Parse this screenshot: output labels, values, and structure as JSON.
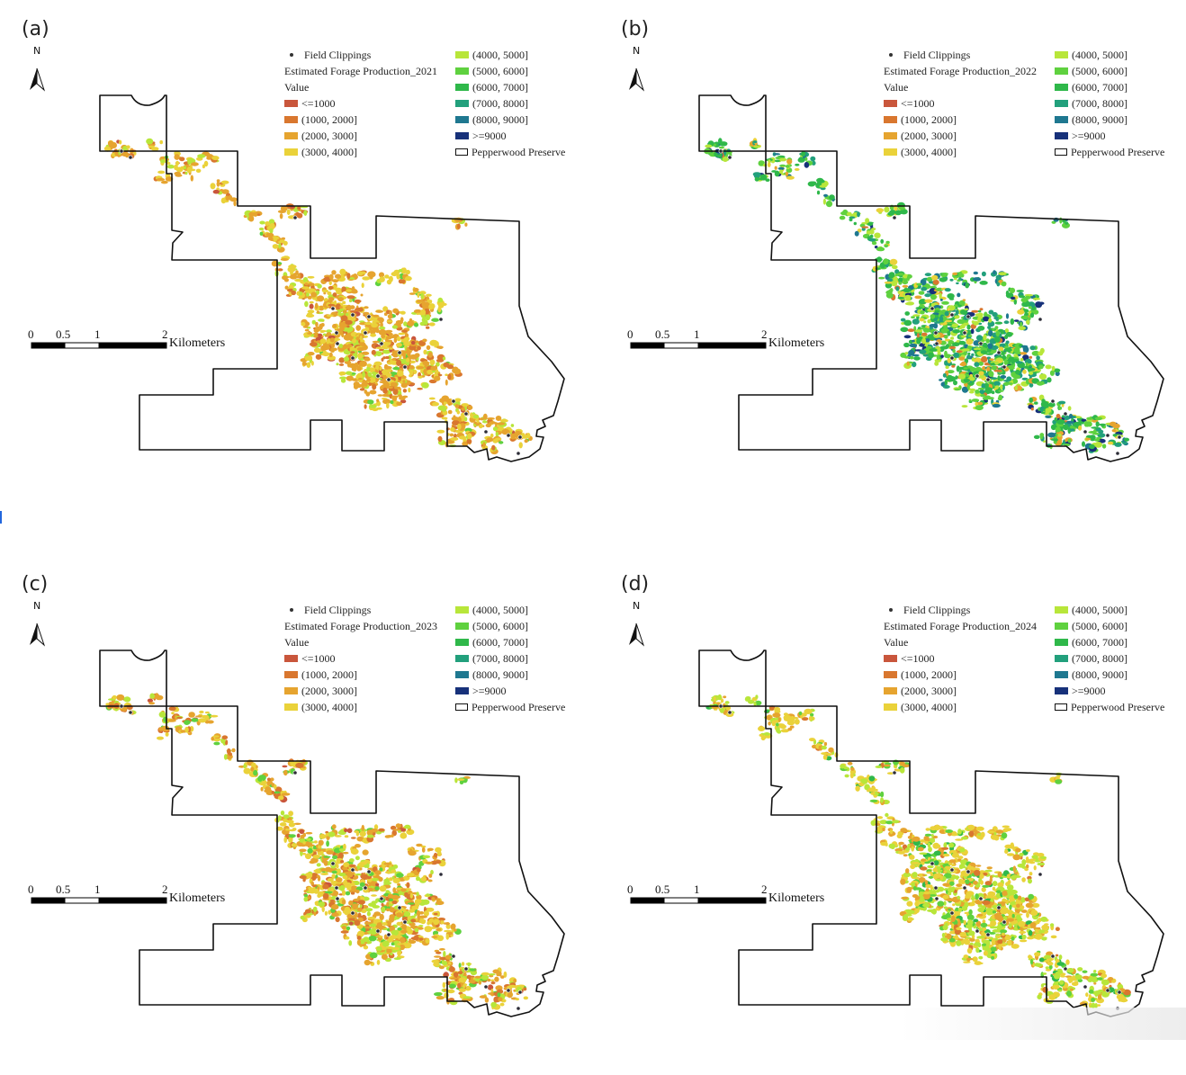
{
  "north_letter": "N",
  "scale": {
    "ticks": [
      "0",
      "0.5",
      "1",
      "2"
    ],
    "unit": "Kilometers"
  },
  "legend": {
    "points_label": "Field Clippings",
    "value_label": "Value",
    "classes": [
      {
        "label": "<=1000",
        "color": "#c9563c"
      },
      {
        "label": "(1000, 2000]",
        "color": "#d9772f"
      },
      {
        "label": "(2000, 3000]",
        "color": "#e6a42f"
      },
      {
        "label": "(3000, 4000]",
        "color": "#ead23a"
      },
      {
        "label": "(4000, 5000]",
        "color": "#b8e63a"
      },
      {
        "label": "(5000, 6000]",
        "color": "#5fd13f"
      },
      {
        "label": "(6000, 7000]",
        "color": "#2fb84a"
      },
      {
        "label": "(7000, 8000]",
        "color": "#22a07c"
      },
      {
        "label": "(8000, 9000]",
        "color": "#1f7890"
      },
      {
        "label": ">=9000",
        "color": "#17317a"
      }
    ],
    "boundary_label": "Pepperwood Preserve"
  },
  "panels": [
    {
      "label": "(a)",
      "title": "Estimated Forage Production_2021",
      "weights": [
        2,
        14,
        40,
        30,
        12,
        2,
        0,
        0,
        0,
        0
      ]
    },
    {
      "label": "(b)",
      "title": "Estimated Forage Production_2022",
      "weights": [
        0,
        2,
        4,
        6,
        16,
        24,
        22,
        14,
        8,
        4
      ]
    },
    {
      "label": "(c)",
      "title": "Estimated Forage Production_2023",
      "weights": [
        2,
        14,
        32,
        28,
        16,
        8,
        0,
        0,
        0,
        0
      ]
    },
    {
      "label": "(d)",
      "title": "Estimated Forage Production_2024",
      "weights": [
        0,
        4,
        18,
        34,
        30,
        10,
        4,
        0,
        0,
        0
      ]
    }
  ]
}
